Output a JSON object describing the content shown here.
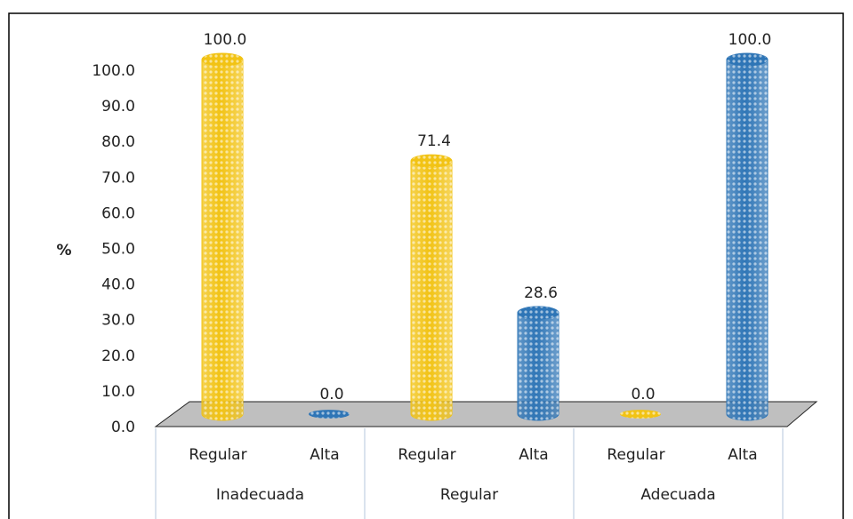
{
  "chart_data": {
    "type": "cylinder-bar",
    "y_label": "%",
    "categories": [
      "Inadecuada",
      "Regular",
      "Adecuada"
    ],
    "series": [
      {
        "name": "Regular",
        "color": "#f2c314",
        "values": [
          100,
          71.4,
          0
        ],
        "value_labels": [
          "100.0",
          "71.4",
          "0.0"
        ]
      },
      {
        "name": "Alta",
        "color": "#2e75b6",
        "values": [
          0,
          28.6,
          100
        ],
        "value_labels": [
          "0.0",
          "28.6",
          "100.0"
        ]
      }
    ],
    "ylim": [
      0,
      100
    ],
    "yticks": [
      {
        "value": 0,
        "label": "0.0"
      },
      {
        "value": 10,
        "label": "10.0"
      },
      {
        "value": 20,
        "label": "20.0"
      },
      {
        "value": 30,
        "label": "30.0"
      },
      {
        "value": 40,
        "label": "40.0"
      },
      {
        "value": 50,
        "label": "50.0"
      },
      {
        "value": 60,
        "label": "60.0"
      },
      {
        "value": 70,
        "label": "70.0"
      },
      {
        "value": 80,
        "label": "80.0"
      },
      {
        "value": 90,
        "label": "90.0"
      },
      {
        "value": 100,
        "label": "100.0"
      }
    ]
  }
}
